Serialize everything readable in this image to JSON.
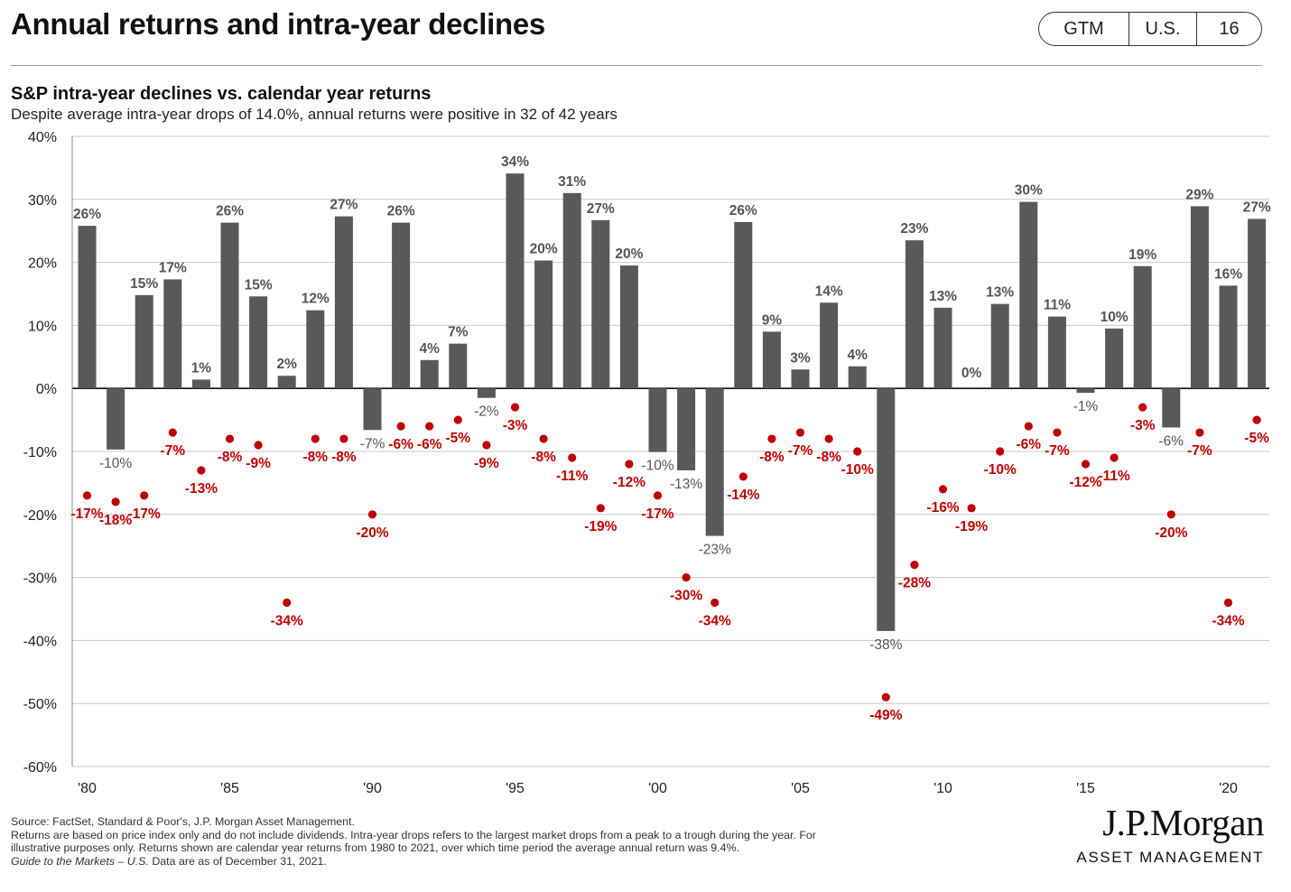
{
  "header": {
    "title": "Annual returns and intra-year declines",
    "badge": [
      "GTM",
      "U.S.",
      "16"
    ]
  },
  "chart_data": {
    "type": "bar",
    "title": "S&P intra-year declines vs. calendar year returns",
    "subtitle": "Despite average intra-year drops of 14.0%, annual returns were positive in 32 of 42 years",
    "ylim": [
      -60,
      40
    ],
    "yticks": [
      40,
      30,
      20,
      10,
      0,
      -10,
      -20,
      -30,
      -40,
      -50,
      -60
    ],
    "ytick_labels": [
      "40%",
      "30%",
      "20%",
      "10%",
      "0%",
      "-10%",
      "-20%",
      "-30%",
      "-40%",
      "-50%",
      "-60%"
    ],
    "years": [
      1980,
      1981,
      1982,
      1983,
      1984,
      1985,
      1986,
      1987,
      1988,
      1989,
      1990,
      1991,
      1992,
      1993,
      1994,
      1995,
      1996,
      1997,
      1998,
      1999,
      2000,
      2001,
      2002,
      2003,
      2004,
      2005,
      2006,
      2007,
      2008,
      2009,
      2010,
      2011,
      2012,
      2013,
      2014,
      2015,
      2016,
      2017,
      2018,
      2019,
      2020,
      2021
    ],
    "xtick_labels": [
      "'80",
      "'85",
      "'90",
      "'95",
      "'00",
      "'05",
      "'10",
      "'15",
      "'20"
    ],
    "series": [
      {
        "name": "Calendar year return",
        "color": "#58595b",
        "values": [
          25.8,
          -9.7,
          14.8,
          17.3,
          1.4,
          26.3,
          14.6,
          2.0,
          12.4,
          27.3,
          -6.6,
          26.3,
          4.5,
          7.1,
          -1.5,
          34.1,
          20.3,
          31.0,
          26.7,
          19.5,
          -10.1,
          -13.0,
          -23.4,
          26.4,
          9.0,
          3.0,
          13.6,
          3.5,
          -38.5,
          23.5,
          12.8,
          0.0,
          13.4,
          29.6,
          11.4,
          -0.7,
          9.5,
          19.4,
          -6.2,
          28.9,
          16.3,
          26.9
        ],
        "labels": [
          "26%",
          "-10%",
          "15%",
          "17%",
          "1%",
          "26%",
          "15%",
          "2%",
          "12%",
          "27%",
          "-7%",
          "26%",
          "4%",
          "7%",
          "-2%",
          "34%",
          "20%",
          "31%",
          "27%",
          "20%",
          "-10%",
          "-13%",
          "-23%",
          "26%",
          "9%",
          "3%",
          "14%",
          "4%",
          "-38%",
          "23%",
          "13%",
          "0%",
          "13%",
          "30%",
          "11%",
          "-1%",
          "10%",
          "19%",
          "-6%",
          "29%",
          "16%",
          "27%"
        ]
      },
      {
        "name": "Intra-year decline",
        "color": "#c00000",
        "values": [
          -17,
          -18,
          -17,
          -7,
          -13,
          -8,
          -9,
          -34,
          -8,
          -8,
          -20,
          -6,
          -6,
          -5,
          -9,
          -3,
          -8,
          -11,
          -19,
          -12,
          -17,
          -30,
          -34,
          -14,
          -8,
          -7,
          -8,
          -10,
          -49,
          -28,
          -16,
          -19,
          -10,
          -6,
          -7,
          -12,
          -11,
          -3,
          -20,
          -7,
          -34,
          -5
        ],
        "labels": [
          "-17%",
          "-18%",
          "-17%",
          "-7%",
          "-13%",
          "-8%",
          "-9%",
          "-34%",
          "-8%",
          "-8%",
          "-20%",
          "-6%",
          "-6%",
          "-5%",
          "-9%",
          "-3%",
          "-8%",
          "-11%",
          "-19%",
          "-12%",
          "-17%",
          "-30%",
          "-34%",
          "-14%",
          "-8%",
          "-7%",
          "-8%",
          "-10%",
          "-49%",
          "-28%",
          "-16%",
          "-19%",
          "-10%",
          "-6%",
          "-7%",
          "-12%",
          "-11%",
          "-3%",
          "-20%",
          "-7%",
          "-34%",
          "-5%"
        ]
      }
    ],
    "grid": true
  },
  "footnote": {
    "lines": [
      "Source: FactSet, Standard & Poor's, J.P. Morgan Asset Management.",
      "Returns are based on price index only and do not include dividends. Intra-year drops refers to the largest market drops from a peak to a trough during the year. For",
      "illustrative purposes only. Returns shown are calendar year returns from 1980 to 2021, over which time period the average annual return was 9.4%."
    ],
    "italic_part": "Guide to the Markets – U.S.",
    "data_as_of": " Data are as of December 31, 2021."
  },
  "logo": {
    "main": "J.P.Morgan",
    "sub": "ASSET MANAGEMENT"
  }
}
